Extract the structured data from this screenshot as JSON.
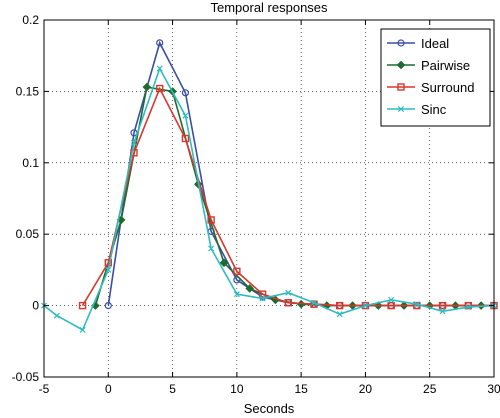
{
  "chart_data": {
    "type": "line",
    "title": "Temporal responses",
    "xlabel": "Seconds",
    "ylabel": "",
    "xlim": [
      -5,
      30
    ],
    "ylim": [
      -0.05,
      0.2
    ],
    "xticks": [
      -5,
      0,
      5,
      10,
      15,
      20,
      25,
      30
    ],
    "yticks": [
      -0.05,
      0,
      0.05,
      0.1,
      0.15,
      0.2
    ],
    "ytick_labels": [
      "-0.05",
      "0",
      "0.05",
      "0.1",
      "0.15",
      "0.2"
    ],
    "grid": true,
    "legend_position": "top-right",
    "series": [
      {
        "name": "Ideal",
        "color": "#3a4fa5",
        "marker": "circle",
        "x": [
          0,
          2,
          4,
          6,
          8,
          10,
          12,
          14,
          16,
          18,
          20,
          22,
          24,
          26,
          28,
          30
        ],
        "y": [
          0,
          0.121,
          0.184,
          0.149,
          0.052,
          0.018,
          0.006,
          0.002,
          0.001,
          0,
          0,
          0,
          0,
          0,
          0,
          0
        ]
      },
      {
        "name": "Pairwise",
        "color": "#1f6b2e",
        "marker": "diamond",
        "x": [
          -1,
          1,
          3,
          5,
          7,
          9,
          11,
          13,
          15,
          17,
          19,
          21,
          23,
          25,
          27,
          29
        ],
        "y": [
          0,
          0.06,
          0.153,
          0.15,
          0.085,
          0.03,
          0.012,
          0.004,
          0.001,
          0,
          0,
          0,
          0,
          0,
          0,
          0
        ]
      },
      {
        "name": "Surround",
        "color": "#d8372b",
        "marker": "square",
        "x": [
          -2,
          0,
          2,
          4,
          6,
          8,
          10,
          12,
          14,
          16,
          18,
          20,
          22,
          24,
          26,
          28,
          30
        ],
        "y": [
          0,
          0.03,
          0.107,
          0.152,
          0.117,
          0.06,
          0.024,
          0.008,
          0.002,
          0.001,
          0,
          0,
          0,
          0,
          0,
          0,
          0
        ]
      },
      {
        "name": "Sinc",
        "color": "#2ebcc0",
        "marker": "x",
        "x": [
          -5,
          -4,
          -2,
          0,
          2,
          4,
          6,
          8,
          10,
          12,
          14,
          16,
          18,
          20,
          22,
          24,
          26,
          28,
          30
        ],
        "y": [
          0,
          -0.007,
          -0.017,
          0.025,
          0.114,
          0.166,
          0.133,
          0.04,
          0.008,
          0.005,
          0.009,
          0.002,
          -0.006,
          0,
          0.004,
          0.001,
          -0.004,
          -0.001,
          0
        ]
      }
    ]
  }
}
